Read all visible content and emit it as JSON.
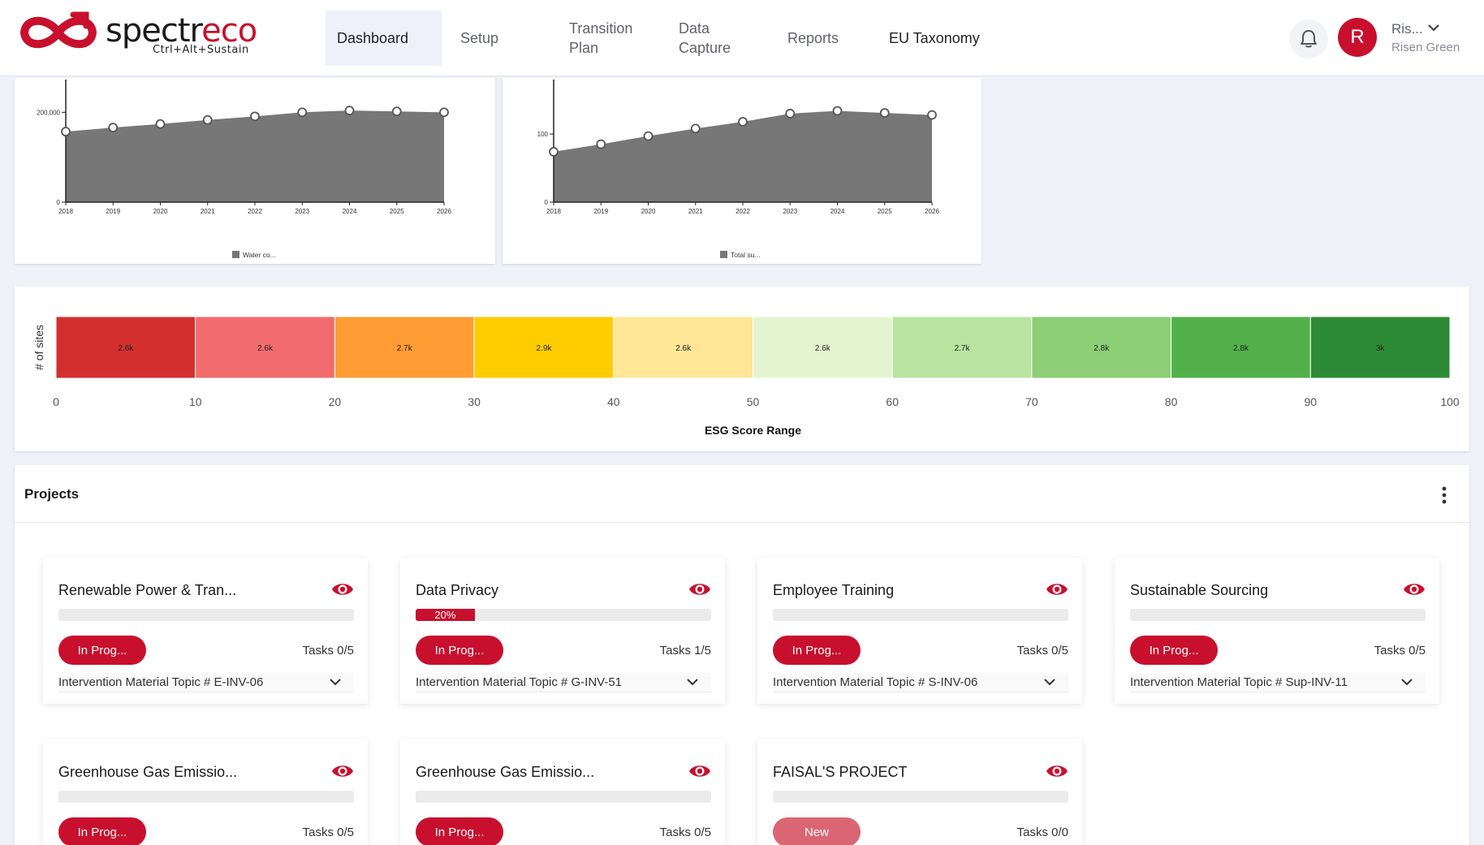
{
  "brand": {
    "name_main": "spectr",
    "name_accent": "eco",
    "tagline": "Ctrl+Alt+Sustain",
    "colors": {
      "primary": "#c8102e",
      "primary_light": "#db6673"
    }
  },
  "nav": {
    "items": [
      {
        "label": "Dashboard",
        "active": true
      },
      {
        "label": "Setup",
        "active": false
      },
      {
        "label": "Transition\nPlan",
        "active": false
      },
      {
        "label": "Data\nCapture",
        "active": false
      },
      {
        "label": "Reports",
        "active": false
      },
      {
        "label": "EU Taxonomy",
        "active": false
      }
    ]
  },
  "user": {
    "avatar_letter": "R",
    "short_name": "Ris...",
    "full_name": "Risen Green",
    "icons": {
      "notifications": "bell-icon",
      "menu": "chevron-down-icon"
    }
  },
  "mini_charts": [
    {
      "type": "area",
      "years": [
        "2018",
        "2019",
        "2020",
        "2021",
        "2022",
        "2023",
        "2024",
        "2025",
        "2026"
      ],
      "values": [
        157000,
        166000,
        174000,
        183000,
        191000,
        200000,
        204000,
        202000,
        200000
      ],
      "y_ticks": [
        {
          "value": 0,
          "label": "0"
        },
        {
          "value": 200000,
          "label": "200,000"
        }
      ],
      "ymax": 273000,
      "legend": "Water co...",
      "color": "#777777"
    },
    {
      "type": "area",
      "years": [
        "2018",
        "2019",
        "2020",
        "2021",
        "2022",
        "2023",
        "2024",
        "2025",
        "2026"
      ],
      "values": [
        74,
        85,
        97,
        108,
        118,
        130,
        134,
        131,
        128
      ],
      "y_ticks": [
        {
          "value": 0,
          "label": "0"
        },
        {
          "value": 100,
          "label": "100"
        }
      ],
      "ymax": 180,
      "legend": "Total su...",
      "color": "#777777"
    }
  ],
  "chart_data": {
    "type": "bar",
    "xlabel": "ESG Score Range",
    "ylabel": "# of sites",
    "x_ticks": [
      0,
      10,
      20,
      30,
      40,
      50,
      60,
      70,
      80,
      90,
      100
    ],
    "bins": [
      {
        "range": [
          0,
          10
        ],
        "label": "2.6k",
        "color": "#d32f2f"
      },
      {
        "range": [
          10,
          20
        ],
        "label": "2.6k",
        "color": "#f26b6e"
      },
      {
        "range": [
          20,
          30
        ],
        "label": "2.7k",
        "color": "#ff9c33"
      },
      {
        "range": [
          30,
          40
        ],
        "label": "2.9k",
        "color": "#ffcc00"
      },
      {
        "range": [
          40,
          50
        ],
        "label": "2.6k",
        "color": "#ffe697"
      },
      {
        "range": [
          50,
          60
        ],
        "label": "2.6k",
        "color": "#e3f5d0"
      },
      {
        "range": [
          60,
          70
        ],
        "label": "2.7k",
        "color": "#b8e4a0"
      },
      {
        "range": [
          70,
          80
        ],
        "label": "2.8k",
        "color": "#8dcf74"
      },
      {
        "range": [
          80,
          90
        ],
        "label": "2.8k",
        "color": "#52b04a"
      },
      {
        "range": [
          90,
          100
        ],
        "label": "3k",
        "color": "#2e8b35"
      }
    ]
  },
  "projects": {
    "title": "Projects",
    "menu_icon": "kebab-menu-icon",
    "items": [
      {
        "title": "Renewable Power & Tran...",
        "progress": 0,
        "progress_label": "",
        "status": "In Prog...",
        "status_type": "in-progress",
        "tasks": "Tasks 0/5",
        "topic": "Intervention Material Topic # E-INV-06"
      },
      {
        "title": "Data Privacy",
        "progress": 0.2,
        "progress_label": "20%",
        "status": "In Prog...",
        "status_type": "in-progress",
        "tasks": "Tasks 1/5",
        "topic": "Intervention Material Topic # G-INV-51"
      },
      {
        "title": "Employee Training",
        "progress": 0,
        "progress_label": "",
        "status": "In Prog...",
        "status_type": "in-progress",
        "tasks": "Tasks 0/5",
        "topic": "Intervention Material Topic # S-INV-06"
      },
      {
        "title": "Sustainable Sourcing",
        "progress": 0,
        "progress_label": "",
        "status": "In Prog...",
        "status_type": "in-progress",
        "tasks": "Tasks 0/5",
        "topic": "Intervention Material Topic # Sup-INV-11"
      },
      {
        "title": "Greenhouse Gas Emissio...",
        "progress": 0,
        "progress_label": "",
        "status": "In Prog...",
        "status_type": "in-progress",
        "tasks": "Tasks 0/5",
        "topic": ""
      },
      {
        "title": "Greenhouse Gas Emissio...",
        "progress": 0,
        "progress_label": "",
        "status": "In Prog...",
        "status_type": "in-progress",
        "tasks": "Tasks 0/5",
        "topic": ""
      },
      {
        "title": "FAISAL'S PROJECT",
        "progress": 0,
        "progress_label": "",
        "status": "New",
        "status_type": "new",
        "tasks": "Tasks 0/0",
        "topic": ""
      }
    ]
  }
}
